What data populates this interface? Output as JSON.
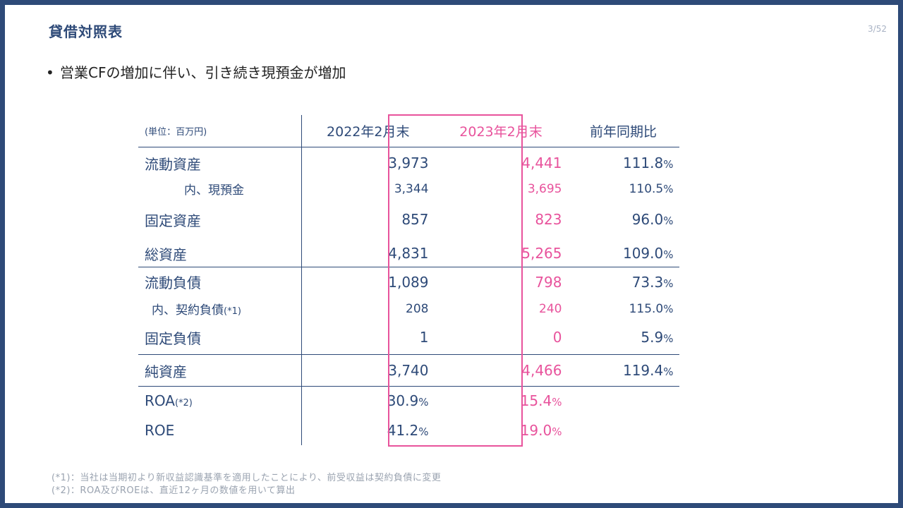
{
  "page": {
    "title": "貸借対照表",
    "page_number": "3/52",
    "bullet": "営業CFの増加に伴い、引き続き現預金が増加"
  },
  "table": {
    "unit_label": "(単位：百万円)",
    "col_2022": "2022年2月末",
    "col_2023": "2023年2月末",
    "col_yoy": "前年同期比",
    "rows": [
      {
        "label": "流動資産",
        "v2022": "3,973",
        "v2023": "4,441",
        "yoy": "111.8",
        "pct": "%"
      },
      {
        "label": "内、現預金",
        "v2022": "3,344",
        "v2023": "3,695",
        "yoy": "110.5",
        "pct": "%"
      },
      {
        "label": "固定資産",
        "v2022": "857",
        "v2023": "823",
        "yoy": "96.0",
        "pct": "%"
      },
      {
        "label": "総資産",
        "v2022": "4,831",
        "v2023": "5,265",
        "yoy": "109.0",
        "pct": "%"
      },
      {
        "label": "流動負債",
        "v2022": "1,089",
        "v2023": "798",
        "yoy": "73.3",
        "pct": "%"
      },
      {
        "label": "内、契約負債",
        "label_note": "(*1)",
        "v2022": "208",
        "v2023": "240",
        "yoy": "115.0",
        "pct": "%"
      },
      {
        "label": "固定負債",
        "v2022": "1",
        "v2023": "0",
        "yoy": "5.9",
        "pct": "%"
      },
      {
        "label": "純資産",
        "v2022": "3,740",
        "v2023": "4,466",
        "yoy": "119.4",
        "pct": "%"
      },
      {
        "label": "ROA",
        "label_note": "(*2)",
        "v2022": "30.9",
        "v2023": "15.4",
        "pct": "%"
      },
      {
        "label": "ROE",
        "v2022": "41.2",
        "v2023": "19.0",
        "pct": "%"
      }
    ]
  },
  "notes": {
    "note1": "(*1)：当社は当期初より新収益認識基準を適用したことにより、前受収益は契約負債に変更",
    "note2": "(*2)：ROA及びROEは、直近12ヶ月の数値を用いて算出"
  },
  "colors": {
    "navy": "#2e4a78",
    "pink": "#e8539c"
  }
}
